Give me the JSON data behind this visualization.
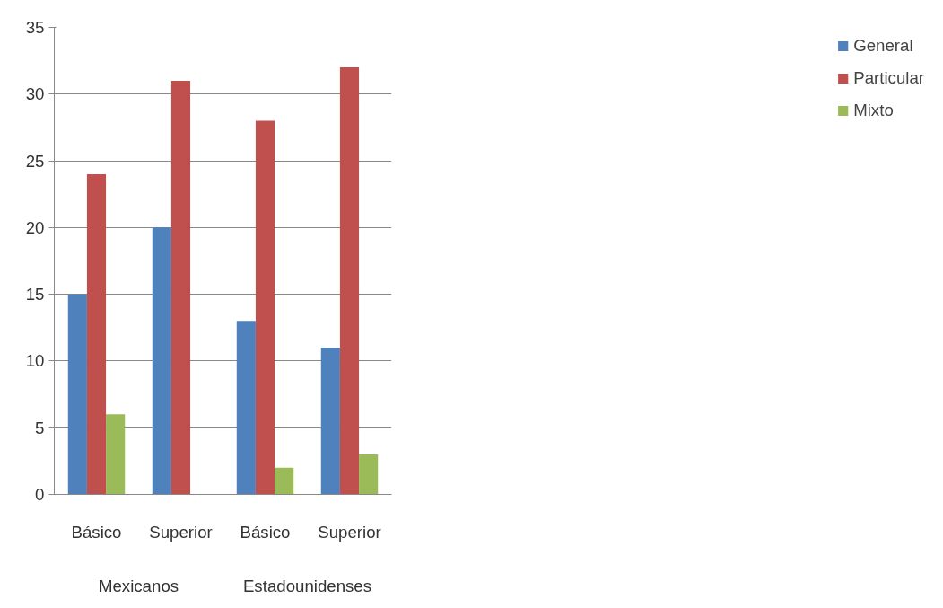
{
  "chart_data": {
    "type": "bar",
    "categories": [
      "Básico",
      "Superior",
      "Básico",
      "Superior"
    ],
    "series": [
      {
        "name": "General",
        "color": "#4f81bd",
        "values": [
          15,
          20,
          13,
          11
        ]
      },
      {
        "name": "Particular",
        "color": "#c0504d",
        "values": [
          24,
          31,
          28,
          32
        ]
      },
      {
        "name": "Mixto",
        "color": "#9bbb59",
        "values": [
          6,
          0,
          2,
          3
        ]
      }
    ],
    "annotations": [
      "Mexicanos",
      "Estadounidenses"
    ],
    "ylim": [
      0,
      35
    ],
    "yticks": [
      0,
      5,
      10,
      15,
      20,
      25,
      30,
      35
    ],
    "grid": "y",
    "legend": "right"
  }
}
